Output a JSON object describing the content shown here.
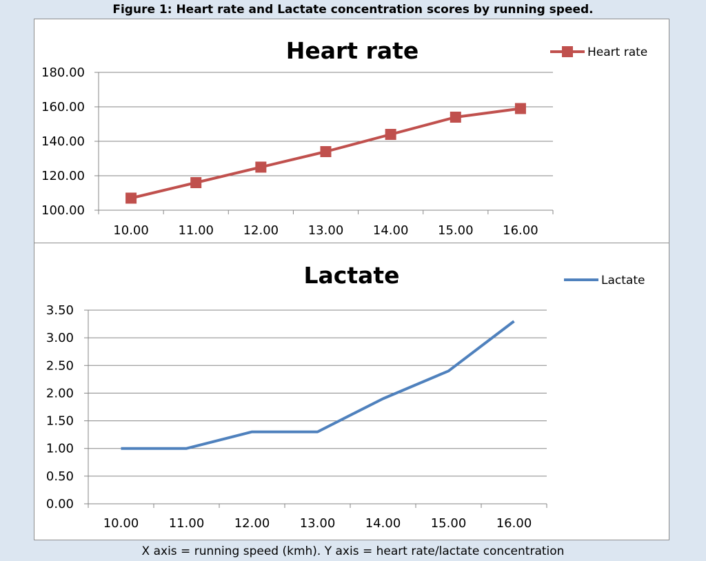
{
  "figure": {
    "caption": "Figure 1: Heart rate and Lactate concentration scores by running speed.",
    "footnote": "X axis = running speed (kmh). Y axis = heart rate/lactate concentration"
  },
  "chart_data": [
    {
      "type": "line",
      "title": "Heart rate",
      "categories": [
        "10.00",
        "11.00",
        "12.00",
        "13.00",
        "14.00",
        "15.00",
        "16.00"
      ],
      "series": [
        {
          "name": "Heart rate",
          "values": [
            107,
            116,
            125,
            134,
            144,
            154,
            159
          ],
          "color": "#c0504d",
          "marker": "square"
        }
      ],
      "ylim": [
        100,
        180
      ],
      "yticks": [
        "100.00",
        "120.00",
        "140.00",
        "160.00",
        "180.00"
      ],
      "grid": true,
      "legend": "top-right"
    },
    {
      "type": "line",
      "title": "Lactate",
      "categories": [
        "10.00",
        "11.00",
        "12.00",
        "13.00",
        "14.00",
        "15.00",
        "16.00"
      ],
      "series": [
        {
          "name": "Lactate",
          "values": [
            1.0,
            1.0,
            1.3,
            1.3,
            1.9,
            2.4,
            3.3
          ],
          "color": "#4f81bd",
          "marker": "none"
        }
      ],
      "ylim": [
        0,
        3.5
      ],
      "yticks": [
        "0.00",
        "0.50",
        "1.00",
        "1.50",
        "2.00",
        "2.50",
        "3.00",
        "3.50"
      ],
      "grid": true,
      "legend": "top-right"
    }
  ]
}
